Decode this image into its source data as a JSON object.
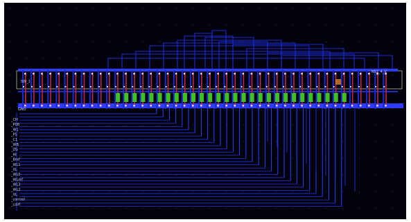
{
  "layout": {
    "cell_labels": [
      "N52_4_V"
    ],
    "instance_label": "SW_1",
    "ground_label": "GND",
    "pin_labels": [
      "_CH",
      "_P0B",
      "_W1",
      "_PS",
      "_C1",
      "_WB",
      "_ZG",
      "_HI",
      "_Bref",
      "_WL1",
      "_XL",
      "_WL0",
      "_WLref",
      "_WL3",
      "_WL2",
      "_XL",
      "_control",
      "_cdiff"
    ]
  },
  "colors": {
    "background": "#02020c",
    "metal1": "#1b2bd4",
    "metal2": "#2f3cff",
    "poly": "#c4264a",
    "diffusion": "#3fc21f",
    "contact": "#d9ddff",
    "cell_border": "#b6c48a",
    "highlight": "#d07a28",
    "label": "#c8ccff"
  }
}
